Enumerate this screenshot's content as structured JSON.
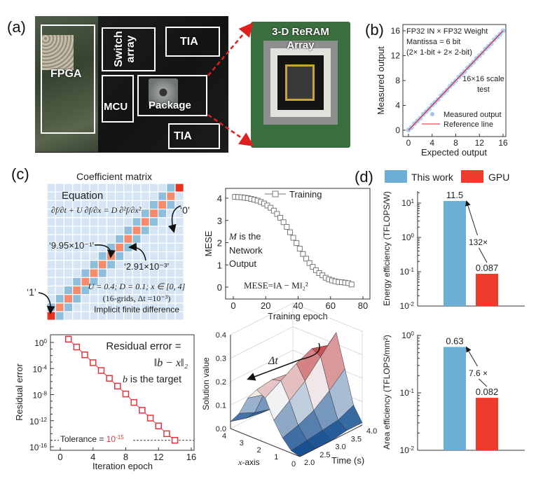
{
  "panel_labels": {
    "a": "(a)",
    "b": "(b)",
    "c": "(c)",
    "d": "(d)"
  },
  "panel_a": {
    "fpga": "FPGA",
    "switch_line1": "Switch",
    "switch_line2": "array",
    "tia_top": "TIA",
    "mcu": "MCU",
    "package": "Package",
    "tia_bottom": "TIA",
    "reram_line1": "3-D ReRAM",
    "reram_line2": "Array",
    "arrow_color": "#e02020"
  },
  "chart_data": [
    {
      "id": "b",
      "type": "scatter",
      "xlabel": "Expected output",
      "ylabel": "Measured output",
      "xlim": [
        0,
        16
      ],
      "ylim": [
        0,
        16
      ],
      "xticks": [
        0,
        4,
        8,
        12,
        16
      ],
      "yticks": [
        0,
        4,
        8,
        12,
        16
      ],
      "annotations": [
        "FP32 IN × FP32 Weight",
        "Mantissa = 6 bit",
        "(2× 1-bit + 2× 2-bit)",
        "16×16 scale",
        "test"
      ],
      "legend": [
        "Measured output",
        "Reference line"
      ],
      "colors": {
        "measured": "#9ec7ef",
        "reference": "#e0202a"
      },
      "measured": {
        "x": [
          0,
          0.5,
          1,
          1.5,
          2,
          2.5,
          3,
          3.5,
          4,
          4.5,
          5,
          5.5,
          6,
          6.5,
          7,
          7.5,
          8,
          8.5,
          9,
          9.5,
          10,
          10.5,
          11,
          11.5,
          12,
          12.5,
          13,
          13.5,
          14,
          14.5,
          15,
          15.5,
          16
        ],
        "y": [
          0.05,
          0.45,
          1.05,
          1.5,
          1.95,
          2.55,
          3.0,
          3.45,
          4.05,
          4.5,
          4.95,
          5.55,
          6.0,
          6.45,
          7.05,
          7.5,
          7.95,
          8.55,
          9.0,
          9.45,
          10.05,
          10.5,
          10.95,
          11.55,
          12.0,
          12.45,
          13.05,
          13.5,
          13.95,
          14.55,
          15.0,
          15.45,
          16.0
        ]
      },
      "reference": {
        "x": [
          0,
          16
        ],
        "y": [
          0,
          16
        ]
      }
    },
    {
      "id": "c-matrix",
      "type": "heatmap",
      "title": "Coefficient matrix",
      "size": 16,
      "values": {
        "boundary": 1,
        "diagonal": 0.995,
        "off_diagonal": 0.00291,
        "other": 0
      },
      "colors": {
        "boundary": "#e5331f",
        "diagonal": "#f58a6c",
        "off_diagonal": "#8dbedc",
        "other": "#d5e5f3"
      },
      "annotations": {
        "equation_title": "Equation",
        "equation": "∂f/∂t + U ∂f/∂x = D ∂²f/∂x²",
        "zero": "‘0’",
        "diag": "‘9.95×10⁻¹’",
        "offdiag": "‘2.91×10⁻³’",
        "one": "‘1’",
        "params": "U = 0.4; D = 0.1; x ∈ [0, 4]",
        "grid": "(16-grids,  Δt =10⁻³)",
        "method": "Implicit finite difference"
      }
    },
    {
      "id": "c-mese",
      "type": "line",
      "xlabel": "Training epoch",
      "ylabel": "MESE",
      "xlim": [
        -5,
        85
      ],
      "ylim": [
        -0.5,
        4.5
      ],
      "xticks": [
        0,
        20,
        40,
        60,
        80
      ],
      "yticks": [
        0,
        1,
        2,
        3,
        4
      ],
      "legend": [
        "Training"
      ],
      "annotations": {
        "m": "M",
        "m_rest": " is the",
        "line2": "Network",
        "line3": "Output",
        "formula": "MESE=‖A − M‖₂²"
      },
      "series": [
        {
          "name": "Training",
          "x": [
            1,
            3,
            5,
            7,
            9,
            11,
            13,
            15,
            17,
            19,
            21,
            23,
            25,
            27,
            29,
            31,
            33,
            35,
            37,
            39,
            41,
            43,
            45,
            47,
            49,
            51,
            53,
            55,
            57,
            59,
            61,
            63,
            65,
            67,
            69,
            71,
            73
          ],
          "y": [
            4.06,
            4.05,
            4.04,
            4.02,
            4.0,
            3.97,
            3.93,
            3.89,
            3.83,
            3.76,
            3.67,
            3.57,
            3.44,
            3.29,
            3.12,
            2.92,
            2.71,
            2.47,
            2.22,
            1.98,
            1.73,
            1.49,
            1.28,
            1.08,
            0.91,
            0.76,
            0.63,
            0.53,
            0.42,
            0.35,
            0.3,
            0.26,
            0.23,
            0.22,
            0.2,
            0.18,
            0.12
          ]
        }
      ]
    },
    {
      "id": "c-residual",
      "type": "line",
      "xlabel": "Iteration epoch",
      "ylabel": "Residual error",
      "yscale": "log",
      "xlim": [
        -2,
        16
      ],
      "ylim_exp": [
        -16.5,
        1.2
      ],
      "xticks": [
        0,
        4,
        8,
        12,
        16
      ],
      "yticks_exp": [
        0,
        -4,
        -8,
        -12,
        -16
      ],
      "color": "#e8333c",
      "annotations": {
        "title": "Residual error =",
        "formula": "‖b − x‖₂",
        "b": "b",
        "b_rest": " is the target",
        "tolerance": "Tolerance = ",
        "tolerance_value": "10",
        "tolerance_exp": "-15"
      },
      "tolerance_exp_value": -15,
      "series": [
        {
          "x": [
            1,
            2,
            3,
            4,
            5,
            6,
            7,
            8,
            9,
            10,
            11,
            12,
            13,
            14
          ],
          "y_exp": [
            0.5,
            -0.7,
            -1.9,
            -3.1,
            -4.3,
            -5.5,
            -6.7,
            -7.9,
            -9.2,
            -10.4,
            -11.6,
            -12.8,
            -14.0,
            -15.0
          ]
        }
      ]
    },
    {
      "id": "c-surface",
      "type": "surface",
      "zlabel": "Solution value",
      "xlabel_italic": "x",
      "xlabel_rest": "-axis",
      "tlabel": "Time (s)",
      "zticks": [
        "0.0",
        "0.1",
        "0.2",
        "0.3",
        "0.4"
      ],
      "xticks": [
        "0",
        "1",
        "2",
        "3",
        "4"
      ],
      "tticks": [
        "2.0",
        "2.5",
        "3.0",
        "3.5",
        "4.0"
      ],
      "annotation": "Δt",
      "colormap": [
        "#0d4a8f",
        "#f4f4f4",
        "#b5161b"
      ],
      "x": [
        0,
        0.5,
        1,
        1.5,
        2,
        2.5,
        3,
        3.5,
        4
      ],
      "t": [
        2,
        2.5,
        3,
        3.5,
        4
      ],
      "z": [
        [
          0.01,
          0.07,
          0.21,
          0.35,
          0.28,
          0.11,
          0.02,
          0.0,
          0.0
        ],
        [
          0.01,
          0.04,
          0.15,
          0.28,
          0.3,
          0.17,
          0.06,
          0.01,
          0.0
        ],
        [
          0.0,
          0.03,
          0.1,
          0.21,
          0.27,
          0.21,
          0.1,
          0.03,
          0.0
        ],
        [
          0.0,
          0.02,
          0.07,
          0.16,
          0.23,
          0.22,
          0.14,
          0.05,
          0.01
        ],
        [
          0.0,
          0.01,
          0.05,
          0.11,
          0.19,
          0.21,
          0.16,
          0.08,
          0.03
        ]
      ]
    },
    {
      "id": "d-energy",
      "type": "bar",
      "yscale": "log",
      "ylabel": "Energy efficiency (TFLOPS/W)",
      "categories": [
        "This work",
        "GPU"
      ],
      "values": [
        11.5,
        0.087
      ],
      "value_labels": [
        "11.5",
        "0.087"
      ],
      "yticks_exp": [
        -2,
        -1,
        0,
        1
      ],
      "ratio_label": "132×",
      "colors": [
        "#6baed6",
        "#ef3b2c"
      ]
    },
    {
      "id": "d-area",
      "type": "bar",
      "yscale": "log",
      "ylabel": "Area efficiency (TFLOPS/mm²)",
      "categories": [
        "This work",
        "GPU"
      ],
      "values": [
        0.63,
        0.082
      ],
      "value_labels": [
        "0.63",
        "0.082"
      ],
      "yticks_exp": [
        -2,
        -1,
        0
      ],
      "ratio_label": "7.6 ×",
      "colors": [
        "#6baed6",
        "#ef3b2c"
      ]
    }
  ],
  "legend_d": [
    "This work",
    "GPU"
  ]
}
